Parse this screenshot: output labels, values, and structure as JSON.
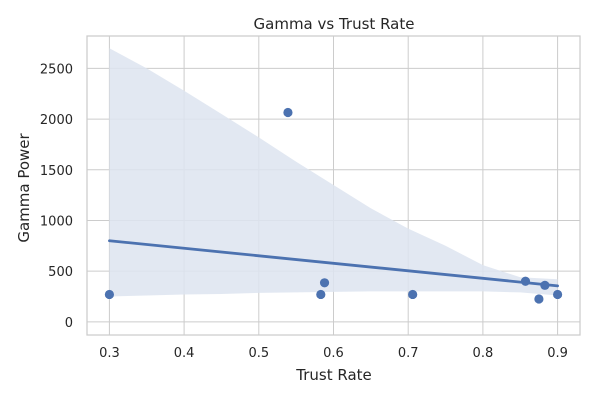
{
  "chart_data": {
    "type": "scatter",
    "title": "Gamma vs Trust Rate",
    "xlabel": "Trust Rate",
    "ylabel": "Gamma Power",
    "xlim": [
      0.27,
      0.93
    ],
    "ylim": [
      -130,
      2820
    ],
    "xticks": [
      0.3,
      0.4,
      0.5,
      0.6,
      0.7,
      0.8,
      0.9
    ],
    "yticks": [
      0,
      500,
      1000,
      1500,
      2000,
      2500
    ],
    "grid": true,
    "colors": {
      "points": "#4c72b0",
      "line": "#4c72b0",
      "band": "#dde4f0",
      "grid": "#cccccc",
      "axes_edge": "#cccccc"
    },
    "series": [
      {
        "points": [
          {
            "x": 0.3,
            "y": 270
          },
          {
            "x": 0.539,
            "y": 2065
          },
          {
            "x": 0.583,
            "y": 270
          },
          {
            "x": 0.588,
            "y": 385
          },
          {
            "x": 0.706,
            "y": 270
          },
          {
            "x": 0.857,
            "y": 400
          },
          {
            "x": 0.875,
            "y": 225
          },
          {
            "x": 0.883,
            "y": 360
          },
          {
            "x": 0.9,
            "y": 270
          }
        ]
      }
    ],
    "regression_line": [
      {
        "x": 0.3,
        "y": 800
      },
      {
        "x": 0.9,
        "y": 355
      }
    ],
    "confidence_band": {
      "x": [
        0.3,
        0.35,
        0.4,
        0.45,
        0.5,
        0.55,
        0.6,
        0.65,
        0.7,
        0.75,
        0.8,
        0.85,
        0.9
      ],
      "upper": [
        2700,
        2500,
        2280,
        2050,
        1820,
        1580,
        1350,
        1120,
        920,
        750,
        560,
        440,
        420
      ],
      "lower": [
        250,
        260,
        270,
        275,
        285,
        290,
        295,
        300,
        300,
        300,
        300,
        290,
        260
      ]
    }
  }
}
